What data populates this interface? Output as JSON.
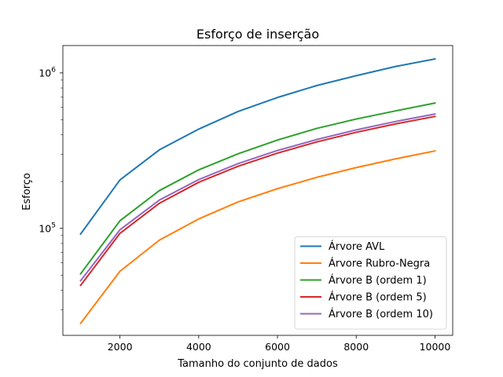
{
  "chart_data": {
    "type": "line",
    "title": "Esforço de inserção",
    "xlabel": "Tamanho do conjunto de dados",
    "ylabel": "Esforço",
    "y_scale": "log",
    "xlim": [
      550,
      10450
    ],
    "ylim": [
      20500,
      1500000
    ],
    "x_ticks": [
      2000,
      4000,
      6000,
      8000,
      10000
    ],
    "x_tick_labels": [
      "2000",
      "4000",
      "6000",
      "8000",
      "10000"
    ],
    "y_ticks": [
      100000,
      1000000
    ],
    "y_tick_labels": [
      {
        "base": "10",
        "exp": "5"
      },
      {
        "base": "10",
        "exp": "6"
      }
    ],
    "grid": false,
    "legend_position": "lower-right",
    "x": [
      1000,
      2000,
      3000,
      4000,
      5000,
      6000,
      7000,
      8000,
      9000,
      10000
    ],
    "series": [
      {
        "name": "Árvore AVL",
        "color": "#1f77b4",
        "values": [
          92000,
          205000,
          320000,
          435000,
          565000,
          695000,
          830000,
          960000,
          1100000,
          1230000
        ]
      },
      {
        "name": "Árvore Rubro-Negra",
        "color": "#ff7f0e",
        "values": [
          24500,
          53000,
          84000,
          115000,
          148000,
          180000,
          213000,
          246000,
          280000,
          315000
        ]
      },
      {
        "name": "Árvore B (ordem 1)",
        "color": "#2ca02c",
        "values": [
          51000,
          112000,
          175000,
          238000,
          302000,
          370000,
          440000,
          505000,
          570000,
          640000
        ]
      },
      {
        "name": "Árvore B (ordem 5)",
        "color": "#d62728",
        "values": [
          43000,
          93000,
          145000,
          198000,
          251000,
          305000,
          360000,
          415000,
          470000,
          525000
        ]
      },
      {
        "name": "Árvore B (ordem 10)",
        "color": "#9467bd",
        "values": [
          46000,
          98000,
          152000,
          206000,
          261000,
          317000,
          373000,
          430000,
          487000,
          544000
        ]
      }
    ]
  }
}
